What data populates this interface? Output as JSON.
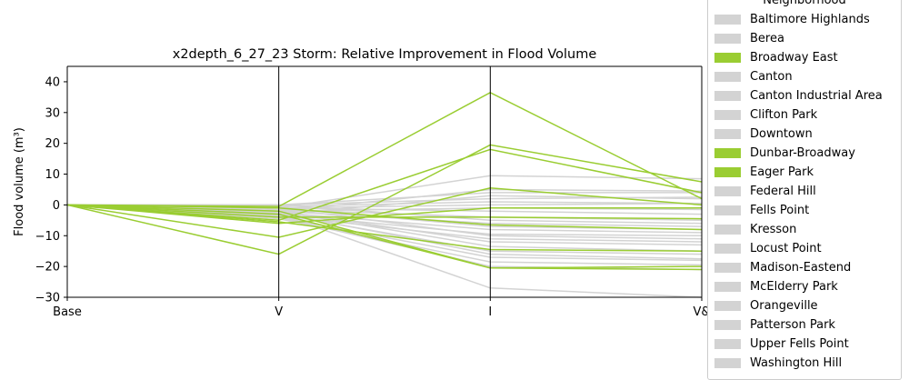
{
  "chart_data": {
    "type": "line",
    "title": "x2depth_6_27_23 Storm: Relative Improvement in Flood Volume",
    "ylabel": "Flood volume (m³)",
    "xlabel": "",
    "categories": [
      "Base",
      "V",
      "I",
      "V&"
    ],
    "ylim": [
      -30,
      45
    ],
    "yticks": [
      40,
      30,
      20,
      10,
      0,
      -10,
      -20,
      -30
    ],
    "grid": false,
    "legend": {
      "title": "Neighborhood",
      "placement": "right",
      "entries": [
        {
          "name": "Baltimore Highlands",
          "color": "#d3d3d3"
        },
        {
          "name": "Berea",
          "color": "#d3d3d3"
        },
        {
          "name": "Broadway East",
          "color": "#9acd32"
        },
        {
          "name": "Canton",
          "color": "#d3d3d3"
        },
        {
          "name": "Canton Industrial Area",
          "color": "#d3d3d3"
        },
        {
          "name": "Clifton Park",
          "color": "#d3d3d3"
        },
        {
          "name": "Downtown",
          "color": "#d3d3d3"
        },
        {
          "name": "Dunbar-Broadway",
          "color": "#9acd32"
        },
        {
          "name": "Eager Park",
          "color": "#9acd32"
        },
        {
          "name": "Federal Hill",
          "color": "#d3d3d3"
        },
        {
          "name": "Fells Point",
          "color": "#d3d3d3"
        },
        {
          "name": "Kresson",
          "color": "#d3d3d3"
        },
        {
          "name": "Locust Point",
          "color": "#d3d3d3"
        },
        {
          "name": "Madison-Eastend",
          "color": "#d3d3d3"
        },
        {
          "name": "McElderry Park",
          "color": "#d3d3d3"
        },
        {
          "name": "Orangeville",
          "color": "#d3d3d3"
        },
        {
          "name": "Patterson Park",
          "color": "#d3d3d3"
        },
        {
          "name": "Upper Fells Point",
          "color": "#d3d3d3"
        },
        {
          "name": "Washington Hill",
          "color": "#d3d3d3"
        }
      ]
    },
    "gray_series": [
      [
        0,
        -1,
        9.5,
        8.5
      ],
      [
        0,
        -2,
        5,
        4.5
      ],
      [
        0,
        -3,
        3,
        2
      ],
      [
        0,
        0,
        2,
        2.5
      ],
      [
        0,
        -0.5,
        1,
        0.5
      ],
      [
        0,
        -1,
        -2,
        -3
      ],
      [
        0,
        -1.5,
        -4,
        -5
      ],
      [
        0,
        -2,
        -6,
        -7
      ],
      [
        0,
        -2.5,
        -8,
        -9
      ],
      [
        0,
        -3,
        -9.5,
        -10
      ],
      [
        0,
        -3.5,
        -11,
        -12
      ],
      [
        0,
        -2,
        -12,
        -13
      ],
      [
        0,
        -3,
        -15,
        -16
      ],
      [
        0,
        -4,
        -17,
        -18
      ],
      [
        0,
        -4.5,
        -18.5,
        -19.5
      ],
      [
        0,
        -4,
        -20,
        -21
      ],
      [
        0,
        -3,
        -27,
        -30
      ],
      [
        0,
        -1,
        -10,
        -11
      ],
      [
        0,
        -2,
        -13.5,
        -15
      ],
      [
        0,
        0,
        -5,
        -6
      ],
      [
        0,
        -1,
        0,
        0.5
      ],
      [
        0,
        0,
        4,
        4
      ],
      [
        0,
        -2,
        -1,
        -1.5
      ],
      [
        0,
        -1,
        -7,
        -8
      ],
      [
        0,
        -2.5,
        -16,
        -17.5
      ]
    ],
    "green_series": [
      [
        0,
        -0.5,
        36.5,
        2
      ],
      [
        0,
        -16,
        19.5,
        7.5
      ],
      [
        0,
        -5,
        18,
        4
      ],
      [
        0,
        -10.5,
        5.5,
        0
      ],
      [
        0,
        -6,
        -1,
        -1
      ],
      [
        0,
        -4,
        -4,
        -4.5
      ],
      [
        0,
        -5.5,
        -14.5,
        -15
      ],
      [
        0,
        -2,
        -20.5,
        -21
      ],
      [
        0,
        -1,
        -6.5,
        -8
      ],
      [
        0,
        -3,
        -20.5,
        -20
      ]
    ],
    "colors": {
      "highlight": "#9acd32",
      "other": "#d3d3d3",
      "axis": "#000000"
    }
  }
}
